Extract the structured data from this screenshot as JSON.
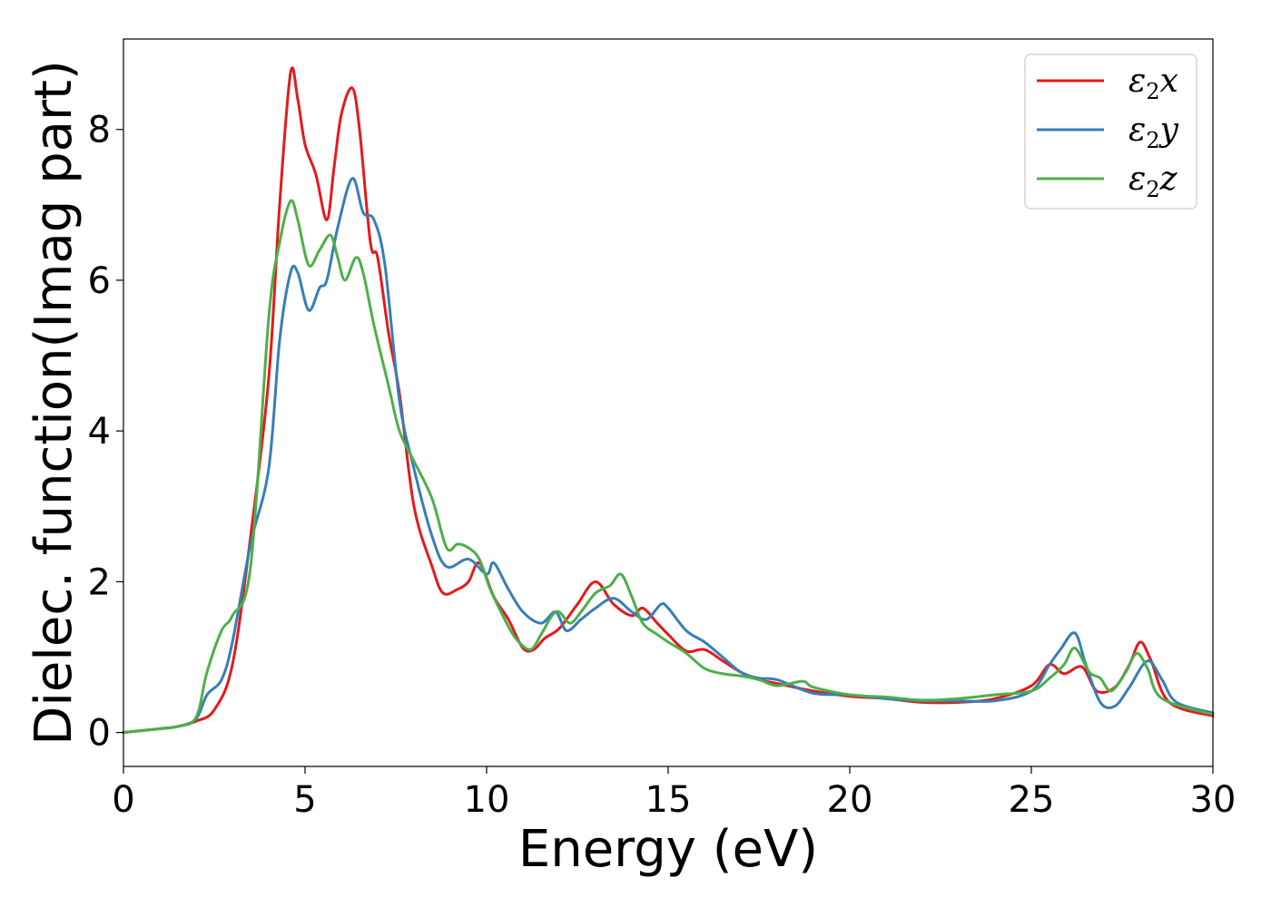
{
  "chart_data": {
    "type": "line",
    "title": "",
    "xlabel": "Energy (eV)",
    "ylabel": "Dielec. function(Imag part)",
    "xlim": [
      0,
      30
    ],
    "ylim": [
      -0.45,
      9.2
    ],
    "xticks": [
      0,
      5,
      10,
      15,
      20,
      25,
      30
    ],
    "yticks": [
      0,
      2,
      4,
      6,
      8
    ],
    "grid": false,
    "legend_position": "top-right",
    "series": [
      {
        "name": "ε2x",
        "legend_base": "ε",
        "legend_sub": "2",
        "legend_var": "x",
        "color": "#e41a1c",
        "points": [
          [
            0,
            0
          ],
          [
            1,
            0.05
          ],
          [
            1.5,
            0.08
          ],
          [
            2,
            0.15
          ],
          [
            2.5,
            0.3
          ],
          [
            3,
            0.9
          ],
          [
            3.5,
            2.6
          ],
          [
            4,
            4.7
          ],
          [
            4.3,
            7.0
          ],
          [
            4.6,
            8.75
          ],
          [
            4.8,
            8.4
          ],
          [
            5.0,
            7.8
          ],
          [
            5.3,
            7.4
          ],
          [
            5.6,
            6.8
          ],
          [
            5.8,
            7.5
          ],
          [
            6.0,
            8.2
          ],
          [
            6.3,
            8.55
          ],
          [
            6.5,
            8.0
          ],
          [
            6.8,
            6.5
          ],
          [
            7.0,
            6.3
          ],
          [
            7.3,
            5.3
          ],
          [
            7.6,
            4.5
          ],
          [
            8.0,
            3.0
          ],
          [
            8.5,
            2.2
          ],
          [
            8.8,
            1.85
          ],
          [
            9.2,
            1.9
          ],
          [
            9.5,
            2.0
          ],
          [
            9.8,
            2.25
          ],
          [
            10.2,
            1.8
          ],
          [
            10.6,
            1.5
          ],
          [
            11.0,
            1.12
          ],
          [
            11.3,
            1.1
          ],
          [
            11.6,
            1.25
          ],
          [
            12.0,
            1.38
          ],
          [
            12.5,
            1.7
          ],
          [
            13.0,
            2.0
          ],
          [
            13.5,
            1.7
          ],
          [
            14.0,
            1.55
          ],
          [
            14.3,
            1.65
          ],
          [
            14.7,
            1.45
          ],
          [
            15.0,
            1.3
          ],
          [
            15.5,
            1.08
          ],
          [
            16.0,
            1.1
          ],
          [
            16.5,
            0.95
          ],
          [
            17.0,
            0.8
          ],
          [
            17.5,
            0.7
          ],
          [
            18,
            0.65
          ],
          [
            19,
            0.55
          ],
          [
            20,
            0.48
          ],
          [
            21,
            0.45
          ],
          [
            22,
            0.4
          ],
          [
            23,
            0.4
          ],
          [
            24,
            0.45
          ],
          [
            25,
            0.62
          ],
          [
            25.5,
            0.9
          ],
          [
            25.9,
            0.78
          ],
          [
            26.4,
            0.87
          ],
          [
            26.8,
            0.55
          ],
          [
            27.3,
            0.6
          ],
          [
            27.7,
            0.9
          ],
          [
            28.0,
            1.2
          ],
          [
            28.3,
            0.95
          ],
          [
            28.8,
            0.4
          ],
          [
            30,
            0.22
          ]
        ]
      },
      {
        "name": "ε2y",
        "legend_base": "ε",
        "legend_sub": "2",
        "legend_var": "y",
        "color": "#377eb8",
        "points": [
          [
            0,
            0
          ],
          [
            1,
            0.05
          ],
          [
            1.5,
            0.08
          ],
          [
            2,
            0.18
          ],
          [
            2.3,
            0.5
          ],
          [
            2.7,
            0.7
          ],
          [
            3.0,
            1.2
          ],
          [
            3.5,
            2.5
          ],
          [
            4.0,
            3.5
          ],
          [
            4.3,
            5.2
          ],
          [
            4.6,
            6.1
          ],
          [
            4.8,
            6.1
          ],
          [
            5.1,
            5.6
          ],
          [
            5.4,
            5.9
          ],
          [
            5.6,
            6.0
          ],
          [
            5.9,
            6.7
          ],
          [
            6.3,
            7.35
          ],
          [
            6.6,
            6.9
          ],
          [
            6.9,
            6.8
          ],
          [
            7.2,
            6.2
          ],
          [
            7.6,
            4.4
          ],
          [
            8.0,
            3.5
          ],
          [
            8.5,
            2.6
          ],
          [
            8.9,
            2.2
          ],
          [
            9.5,
            2.3
          ],
          [
            10.0,
            2.1
          ],
          [
            10.2,
            2.25
          ],
          [
            10.6,
            1.9
          ],
          [
            11.0,
            1.6
          ],
          [
            11.5,
            1.45
          ],
          [
            11.9,
            1.6
          ],
          [
            12.2,
            1.35
          ],
          [
            12.6,
            1.5
          ],
          [
            13.0,
            1.65
          ],
          [
            13.5,
            1.78
          ],
          [
            14.0,
            1.6
          ],
          [
            14.4,
            1.5
          ],
          [
            14.8,
            1.7
          ],
          [
            15.0,
            1.65
          ],
          [
            15.5,
            1.35
          ],
          [
            16.0,
            1.2
          ],
          [
            16.5,
            1.0
          ],
          [
            17,
            0.8
          ],
          [
            17.5,
            0.72
          ],
          [
            18,
            0.7
          ],
          [
            19,
            0.52
          ],
          [
            20,
            0.5
          ],
          [
            21,
            0.45
          ],
          [
            22,
            0.42
          ],
          [
            23,
            0.42
          ],
          [
            24,
            0.42
          ],
          [
            25,
            0.55
          ],
          [
            25.5,
            0.9
          ],
          [
            25.8,
            1.1
          ],
          [
            26.2,
            1.32
          ],
          [
            26.5,
            0.9
          ],
          [
            26.9,
            0.4
          ],
          [
            27.3,
            0.35
          ],
          [
            27.7,
            0.6
          ],
          [
            28.2,
            0.95
          ],
          [
            28.6,
            0.7
          ],
          [
            29.0,
            0.4
          ],
          [
            30,
            0.26
          ]
        ]
      },
      {
        "name": "ε2z",
        "legend_base": "ε",
        "legend_sub": "2",
        "legend_var": "z",
        "color": "#4daf4a",
        "points": [
          [
            0,
            0
          ],
          [
            1,
            0.05
          ],
          [
            1.5,
            0.08
          ],
          [
            2,
            0.2
          ],
          [
            2.3,
            0.8
          ],
          [
            2.7,
            1.35
          ],
          [
            3.0,
            1.55
          ],
          [
            3.5,
            2.2
          ],
          [
            4.0,
            5.5
          ],
          [
            4.3,
            6.5
          ],
          [
            4.6,
            7.05
          ],
          [
            4.8,
            6.8
          ],
          [
            5.1,
            6.2
          ],
          [
            5.4,
            6.4
          ],
          [
            5.7,
            6.6
          ],
          [
            5.9,
            6.3
          ],
          [
            6.1,
            6.0
          ],
          [
            6.4,
            6.3
          ],
          [
            6.6,
            6.1
          ],
          [
            6.9,
            5.4
          ],
          [
            7.3,
            4.6
          ],
          [
            7.6,
            4.0
          ],
          [
            8.0,
            3.6
          ],
          [
            8.5,
            3.1
          ],
          [
            8.9,
            2.45
          ],
          [
            9.2,
            2.5
          ],
          [
            9.5,
            2.45
          ],
          [
            9.8,
            2.3
          ],
          [
            10.1,
            1.9
          ],
          [
            10.5,
            1.5
          ],
          [
            10.8,
            1.25
          ],
          [
            11.2,
            1.1
          ],
          [
            11.5,
            1.3
          ],
          [
            11.8,
            1.55
          ],
          [
            12.0,
            1.6
          ],
          [
            12.3,
            1.45
          ],
          [
            12.6,
            1.6
          ],
          [
            13.0,
            1.85
          ],
          [
            13.4,
            1.95
          ],
          [
            13.7,
            2.1
          ],
          [
            14.0,
            1.8
          ],
          [
            14.3,
            1.45
          ],
          [
            14.7,
            1.3
          ],
          [
            15.0,
            1.2
          ],
          [
            15.5,
            1.05
          ],
          [
            16.0,
            0.85
          ],
          [
            16.5,
            0.78
          ],
          [
            17.0,
            0.75
          ],
          [
            17.5,
            0.7
          ],
          [
            18,
            0.62
          ],
          [
            18.7,
            0.68
          ],
          [
            19,
            0.6
          ],
          [
            20,
            0.5
          ],
          [
            21,
            0.47
          ],
          [
            22,
            0.43
          ],
          [
            23,
            0.45
          ],
          [
            24,
            0.5
          ],
          [
            25,
            0.55
          ],
          [
            25.5,
            0.72
          ],
          [
            25.9,
            0.9
          ],
          [
            26.2,
            1.12
          ],
          [
            26.6,
            0.8
          ],
          [
            26.9,
            0.72
          ],
          [
            27.2,
            0.55
          ],
          [
            27.6,
            0.8
          ],
          [
            27.9,
            1.05
          ],
          [
            28.2,
            0.85
          ],
          [
            28.6,
            0.45
          ],
          [
            30,
            0.24
          ]
        ]
      }
    ]
  }
}
